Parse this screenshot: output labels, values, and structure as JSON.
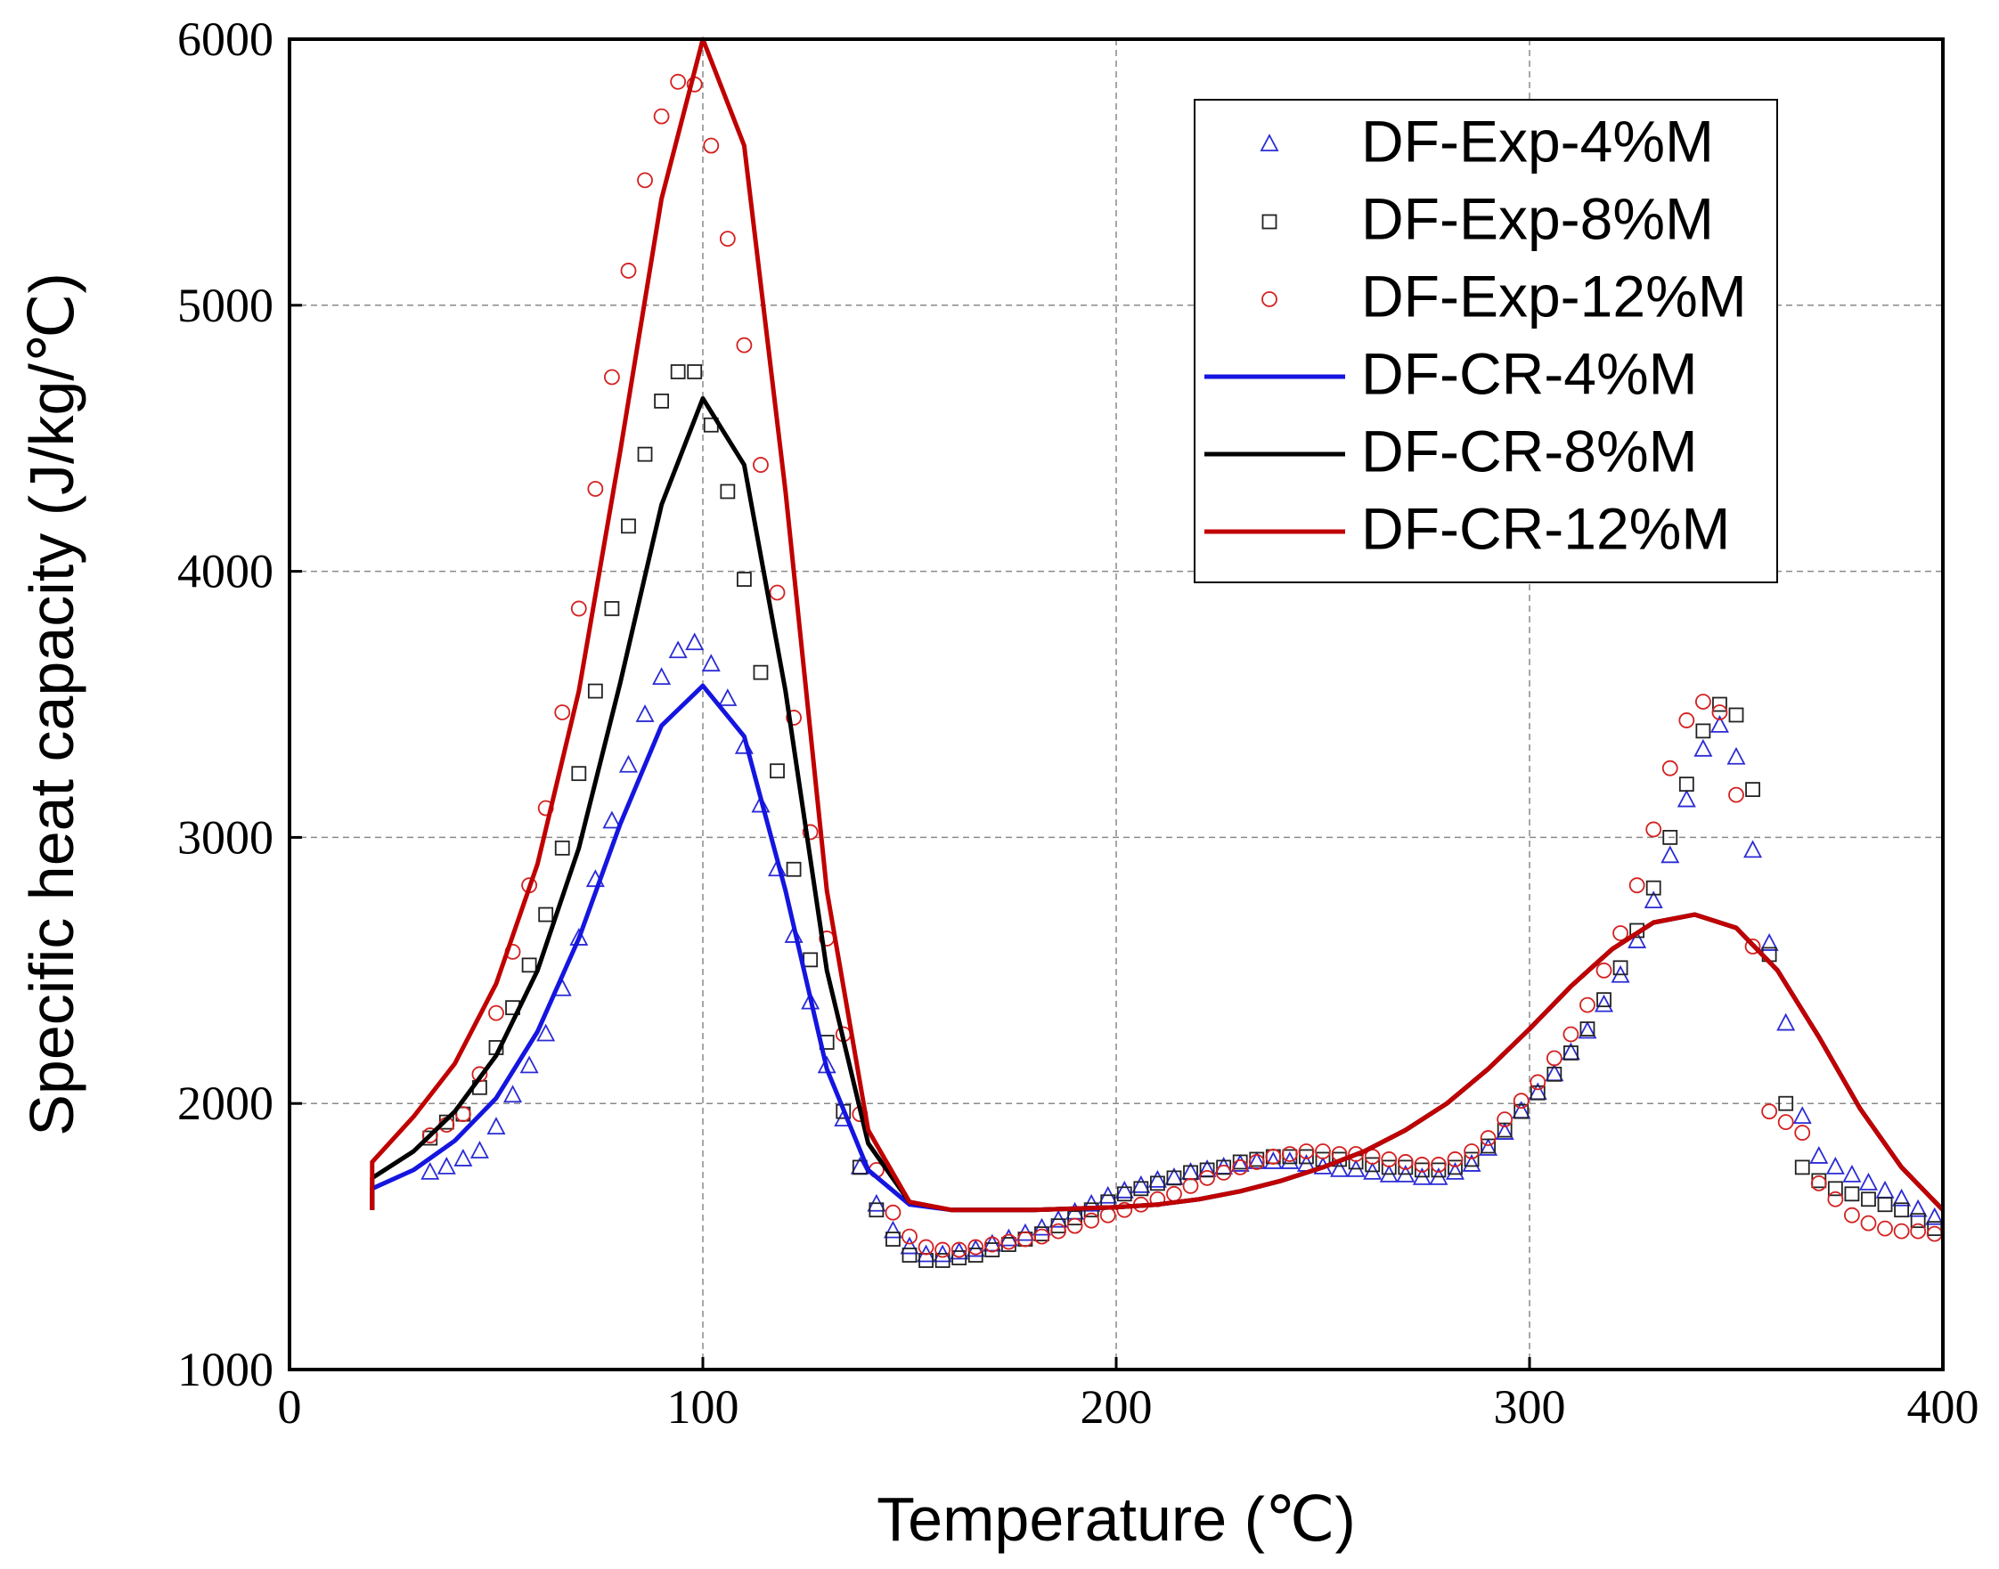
{
  "chart_data": {
    "type": "line",
    "xlabel": "Temperature (℃)",
    "ylabel": "Specific heat capacity (J/kg/℃)",
    "xlim": [
      0,
      400
    ],
    "xticks": [
      0,
      100,
      200,
      300,
      400
    ],
    "ylim": [
      1000,
      6000
    ],
    "yticks": [
      1000,
      2000,
      3000,
      4000,
      5000,
      6000
    ],
    "grid": true,
    "legend": "upper right",
    "series": [
      {
        "name": "DF-Exp-4%M",
        "color": "#2b2bd6",
        "style": "marker",
        "marker": "triangle",
        "x": [
          34,
          38,
          42,
          46,
          50,
          54,
          58,
          62,
          66,
          70,
          74,
          78,
          82,
          86,
          90,
          94,
          98,
          102,
          106,
          110,
          114,
          118,
          122,
          126,
          130,
          134,
          138,
          142,
          146,
          150,
          154,
          158,
          162,
          166,
          170,
          174,
          178,
          182,
          186,
          190,
          194,
          198,
          202,
          206,
          210,
          214,
          218,
          222,
          226,
          230,
          234,
          238,
          242,
          246,
          250,
          254,
          258,
          262,
          266,
          270,
          274,
          278,
          282,
          286,
          290,
          294,
          298,
          302,
          306,
          310,
          314,
          318,
          322,
          326,
          330,
          334,
          338,
          342,
          346,
          350,
          354,
          358,
          362,
          366,
          370,
          374,
          378,
          382,
          386,
          390,
          394,
          398
        ],
        "values": [
          1740,
          1760,
          1790,
          1820,
          1910,
          2030,
          2140,
          2260,
          2430,
          2620,
          2840,
          3060,
          3270,
          3460,
          3600,
          3700,
          3730,
          3650,
          3520,
          3340,
          3120,
          2880,
          2630,
          2380,
          2140,
          1940,
          1760,
          1620,
          1520,
          1460,
          1430,
          1430,
          1440,
          1450,
          1470,
          1490,
          1510,
          1530,
          1560,
          1590,
          1620,
          1650,
          1670,
          1690,
          1710,
          1720,
          1740,
          1750,
          1760,
          1770,
          1780,
          1780,
          1780,
          1770,
          1760,
          1750,
          1750,
          1740,
          1730,
          1730,
          1720,
          1720,
          1740,
          1770,
          1830,
          1890,
          1970,
          2040,
          2110,
          2190,
          2270,
          2370,
          2480,
          2610,
          2760,
          2930,
          3140,
          3330,
          3420,
          3300,
          2950,
          2600,
          2300,
          1950,
          1800,
          1760,
          1730,
          1700,
          1670,
          1640,
          1600,
          1570
        ]
      },
      {
        "name": "DF-Exp-8%M",
        "color": "#222222",
        "style": "marker",
        "marker": "square",
        "x": [
          34,
          38,
          42,
          46,
          50,
          54,
          58,
          62,
          66,
          70,
          74,
          78,
          82,
          86,
          90,
          94,
          98,
          102,
          106,
          110,
          114,
          118,
          122,
          126,
          130,
          134,
          138,
          142,
          146,
          150,
          154,
          158,
          162,
          166,
          170,
          174,
          178,
          182,
          186,
          190,
          194,
          198,
          202,
          206,
          210,
          214,
          218,
          222,
          226,
          230,
          234,
          238,
          242,
          246,
          250,
          254,
          258,
          262,
          266,
          270,
          274,
          278,
          282,
          286,
          290,
          294,
          298,
          302,
          306,
          310,
          314,
          318,
          322,
          326,
          330,
          334,
          338,
          342,
          346,
          350,
          354,
          358,
          362,
          366,
          370,
          374,
          378,
          382,
          386,
          390,
          394,
          398
        ],
        "values": [
          1870,
          1930,
          1960,
          2060,
          2210,
          2360,
          2520,
          2710,
          2960,
          3240,
          3550,
          3860,
          4170,
          4440,
          4640,
          4750,
          4750,
          4550,
          4300,
          3970,
          3620,
          3250,
          2880,
          2540,
          2230,
          1970,
          1760,
          1600,
          1490,
          1430,
          1410,
          1410,
          1420,
          1430,
          1450,
          1470,
          1490,
          1510,
          1540,
          1570,
          1600,
          1630,
          1660,
          1680,
          1700,
          1720,
          1740,
          1750,
          1760,
          1780,
          1790,
          1800,
          1800,
          1800,
          1790,
          1790,
          1780,
          1770,
          1760,
          1760,
          1750,
          1750,
          1760,
          1790,
          1840,
          1900,
          1970,
          2040,
          2110,
          2190,
          2280,
          2390,
          2510,
          2650,
          2810,
          3000,
          3200,
          3400,
          3500,
          3460,
          3180,
          2560,
          2000,
          1760,
          1710,
          1680,
          1660,
          1640,
          1620,
          1600,
          1560,
          1530
        ]
      },
      {
        "name": "DF-Exp-12%M",
        "color": "#d42020",
        "style": "marker",
        "marker": "circle",
        "x": [
          34,
          38,
          42,
          46,
          50,
          54,
          58,
          62,
          66,
          70,
          74,
          78,
          82,
          86,
          90,
          94,
          98,
          102,
          106,
          110,
          114,
          118,
          122,
          126,
          130,
          134,
          138,
          142,
          146,
          150,
          154,
          158,
          162,
          166,
          170,
          174,
          178,
          182,
          186,
          190,
          194,
          198,
          202,
          206,
          210,
          214,
          218,
          222,
          226,
          230,
          234,
          238,
          242,
          246,
          250,
          254,
          258,
          262,
          266,
          270,
          274,
          278,
          282,
          286,
          290,
          294,
          298,
          302,
          306,
          310,
          314,
          318,
          322,
          326,
          330,
          334,
          338,
          342,
          346,
          350,
          354,
          358,
          362,
          366,
          370,
          374,
          378,
          382,
          386,
          390,
          394,
          398
        ],
        "values": [
          1880,
          1920,
          1960,
          2110,
          2340,
          2570,
          2820,
          3110,
          3470,
          3860,
          4310,
          4730,
          5130,
          5470,
          5710,
          5840,
          5830,
          5600,
          5250,
          4850,
          4400,
          3920,
          3450,
          3020,
          2620,
          2260,
          1960,
          1750,
          1590,
          1500,
          1460,
          1450,
          1450,
          1460,
          1470,
          1480,
          1490,
          1500,
          1520,
          1540,
          1560,
          1580,
          1600,
          1620,
          1640,
          1660,
          1690,
          1720,
          1740,
          1760,
          1780,
          1800,
          1810,
          1820,
          1820,
          1810,
          1810,
          1800,
          1790,
          1780,
          1770,
          1770,
          1790,
          1820,
          1870,
          1940,
          2010,
          2080,
          2170,
          2260,
          2370,
          2500,
          2640,
          2820,
          3030,
          3260,
          3440,
          3510,
          3470,
          3160,
          2590,
          1970,
          1930,
          1890,
          1700,
          1640,
          1580,
          1550,
          1530,
          1520,
          1520,
          1510
        ]
      },
      {
        "name": "DF-CR-4%M",
        "color": "#1515e0",
        "style": "line",
        "x": [
          20,
          20,
          30,
          40,
          50,
          60,
          70,
          80,
          90,
          100,
          110,
          120,
          130,
          140,
          150,
          160,
          170,
          180,
          190,
          200,
          210,
          220,
          230,
          240,
          250,
          260,
          270,
          280,
          290,
          300,
          310,
          320,
          330,
          340,
          350,
          360,
          370,
          380,
          390,
          400
        ],
        "values": [
          1600,
          1680,
          1750,
          1860,
          2020,
          2270,
          2620,
          3050,
          3420,
          3570,
          3380,
          2800,
          2130,
          1750,
          1620,
          1600,
          1600,
          1600,
          1605,
          1610,
          1620,
          1640,
          1670,
          1710,
          1760,
          1820,
          1900,
          2000,
          2130,
          2280,
          2440,
          2580,
          2680,
          2710,
          2660,
          2500,
          2250,
          1980,
          1760,
          1600
        ]
      },
      {
        "name": "DF-CR-8%M",
        "color": "#000000",
        "style": "line",
        "x": [
          20,
          20,
          30,
          40,
          50,
          60,
          70,
          80,
          90,
          100,
          110,
          120,
          130,
          140,
          150,
          160,
          170,
          180,
          190,
          200,
          210,
          220,
          230,
          240,
          250,
          260,
          270,
          280,
          290,
          300,
          310,
          320,
          330,
          340,
          350,
          360,
          370,
          380,
          390,
          400
        ],
        "values": [
          1600,
          1720,
          1820,
          1970,
          2180,
          2500,
          2960,
          3580,
          4250,
          4650,
          4400,
          3550,
          2500,
          1850,
          1630,
          1600,
          1600,
          1600,
          1605,
          1610,
          1620,
          1640,
          1670,
          1710,
          1760,
          1820,
          1900,
          2000,
          2130,
          2280,
          2440,
          2580,
          2680,
          2710,
          2660,
          2500,
          2250,
          1980,
          1760,
          1600
        ]
      },
      {
        "name": "DF-CR-12%M",
        "color": "#c00000",
        "style": "line",
        "x": [
          20,
          20,
          30,
          40,
          50,
          60,
          70,
          80,
          90,
          100,
          110,
          120,
          130,
          140,
          150,
          160,
          170,
          180,
          190,
          200,
          210,
          220,
          230,
          240,
          250,
          260,
          270,
          280,
          290,
          300,
          310,
          320,
          330,
          340,
          350,
          360,
          370,
          380,
          390,
          400
        ],
        "values": [
          1600,
          1780,
          1950,
          2150,
          2450,
          2900,
          3550,
          4450,
          5400,
          6000,
          5600,
          4300,
          2800,
          1900,
          1630,
          1600,
          1600,
          1600,
          1605,
          1610,
          1620,
          1640,
          1670,
          1710,
          1760,
          1820,
          1900,
          2000,
          2130,
          2280,
          2440,
          2580,
          2680,
          2710,
          2660,
          2500,
          2250,
          1980,
          1760,
          1600
        ]
      }
    ]
  }
}
